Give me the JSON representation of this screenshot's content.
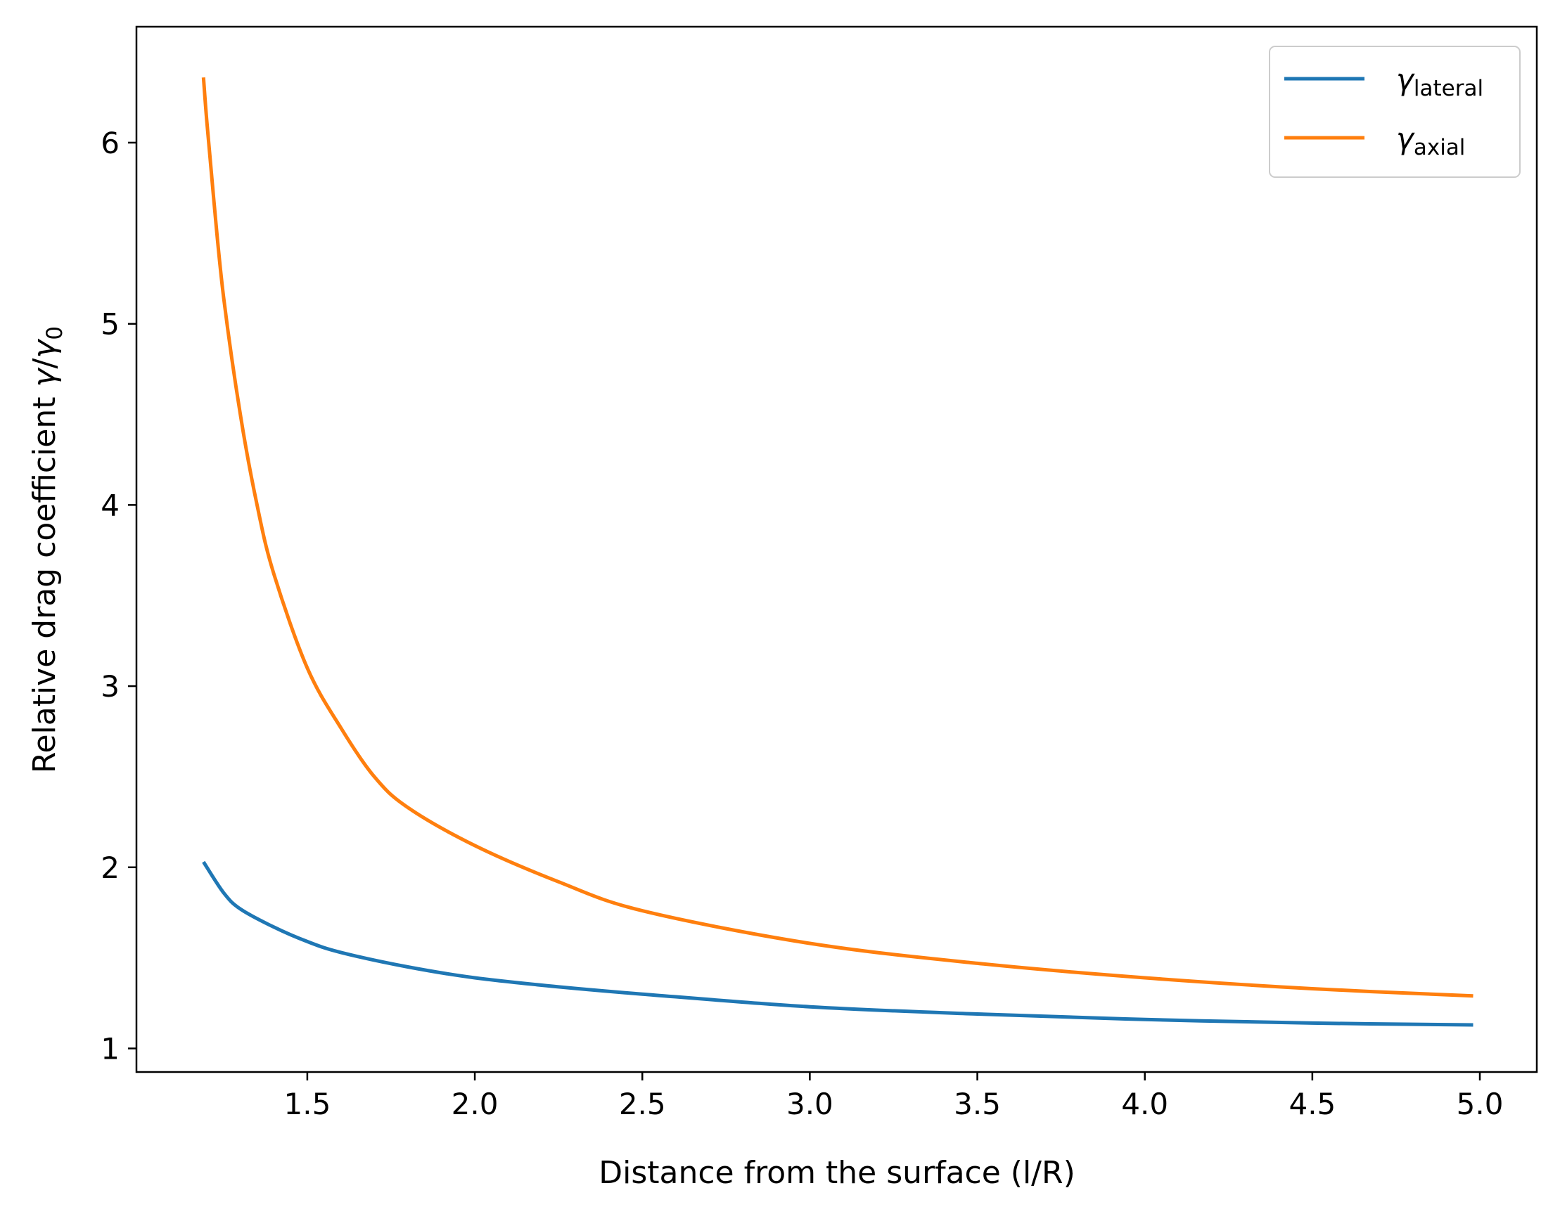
{
  "chart_data": {
    "type": "line",
    "title": "",
    "xlabel": "Distance from the surface (l/R)",
    "ylabel_parts": {
      "prefix": "Relative drag coefficient ",
      "gamma": "γ",
      "slash": "/",
      "gamma0": "γ",
      "sub0": "0"
    },
    "xlim": [
      0.99,
      5.17
    ],
    "ylim": [
      0.87,
      6.64
    ],
    "xticks": [
      "1.5",
      "2.0",
      "2.5",
      "3.0",
      "3.5",
      "4.0",
      "4.5",
      "5.0"
    ],
    "yticks": [
      "1",
      "2",
      "3",
      "4",
      "5",
      "6"
    ],
    "grid": false,
    "legend_position": "top-right",
    "series": [
      {
        "name": "γ_lateral",
        "legend_symbol": "γ",
        "legend_sub": "lateral",
        "color": "#1f77b4",
        "x": [
          1.19,
          1.25,
          1.3,
          1.4,
          1.5,
          1.6,
          1.8,
          2.0,
          2.25,
          2.5,
          3.0,
          3.5,
          4.0,
          4.5,
          4.98
        ],
        "y": [
          2.03,
          1.86,
          1.77,
          1.67,
          1.59,
          1.53,
          1.45,
          1.39,
          1.34,
          1.3,
          1.23,
          1.19,
          1.16,
          1.14,
          1.13
        ]
      },
      {
        "name": "γ_axial",
        "legend_symbol": "γ",
        "legend_sub": "axial",
        "color": "#ff7f0e",
        "x": [
          1.19,
          1.2,
          1.22,
          1.25,
          1.3,
          1.35,
          1.4,
          1.5,
          1.6,
          1.7,
          1.8,
          2.0,
          2.25,
          2.5,
          3.0,
          3.5,
          4.0,
          4.5,
          4.98
        ],
        "y": [
          6.36,
          6.12,
          5.7,
          5.15,
          4.5,
          4.0,
          3.62,
          3.1,
          2.77,
          2.5,
          2.33,
          2.12,
          1.92,
          1.76,
          1.58,
          1.47,
          1.39,
          1.33,
          1.29
        ]
      }
    ]
  }
}
